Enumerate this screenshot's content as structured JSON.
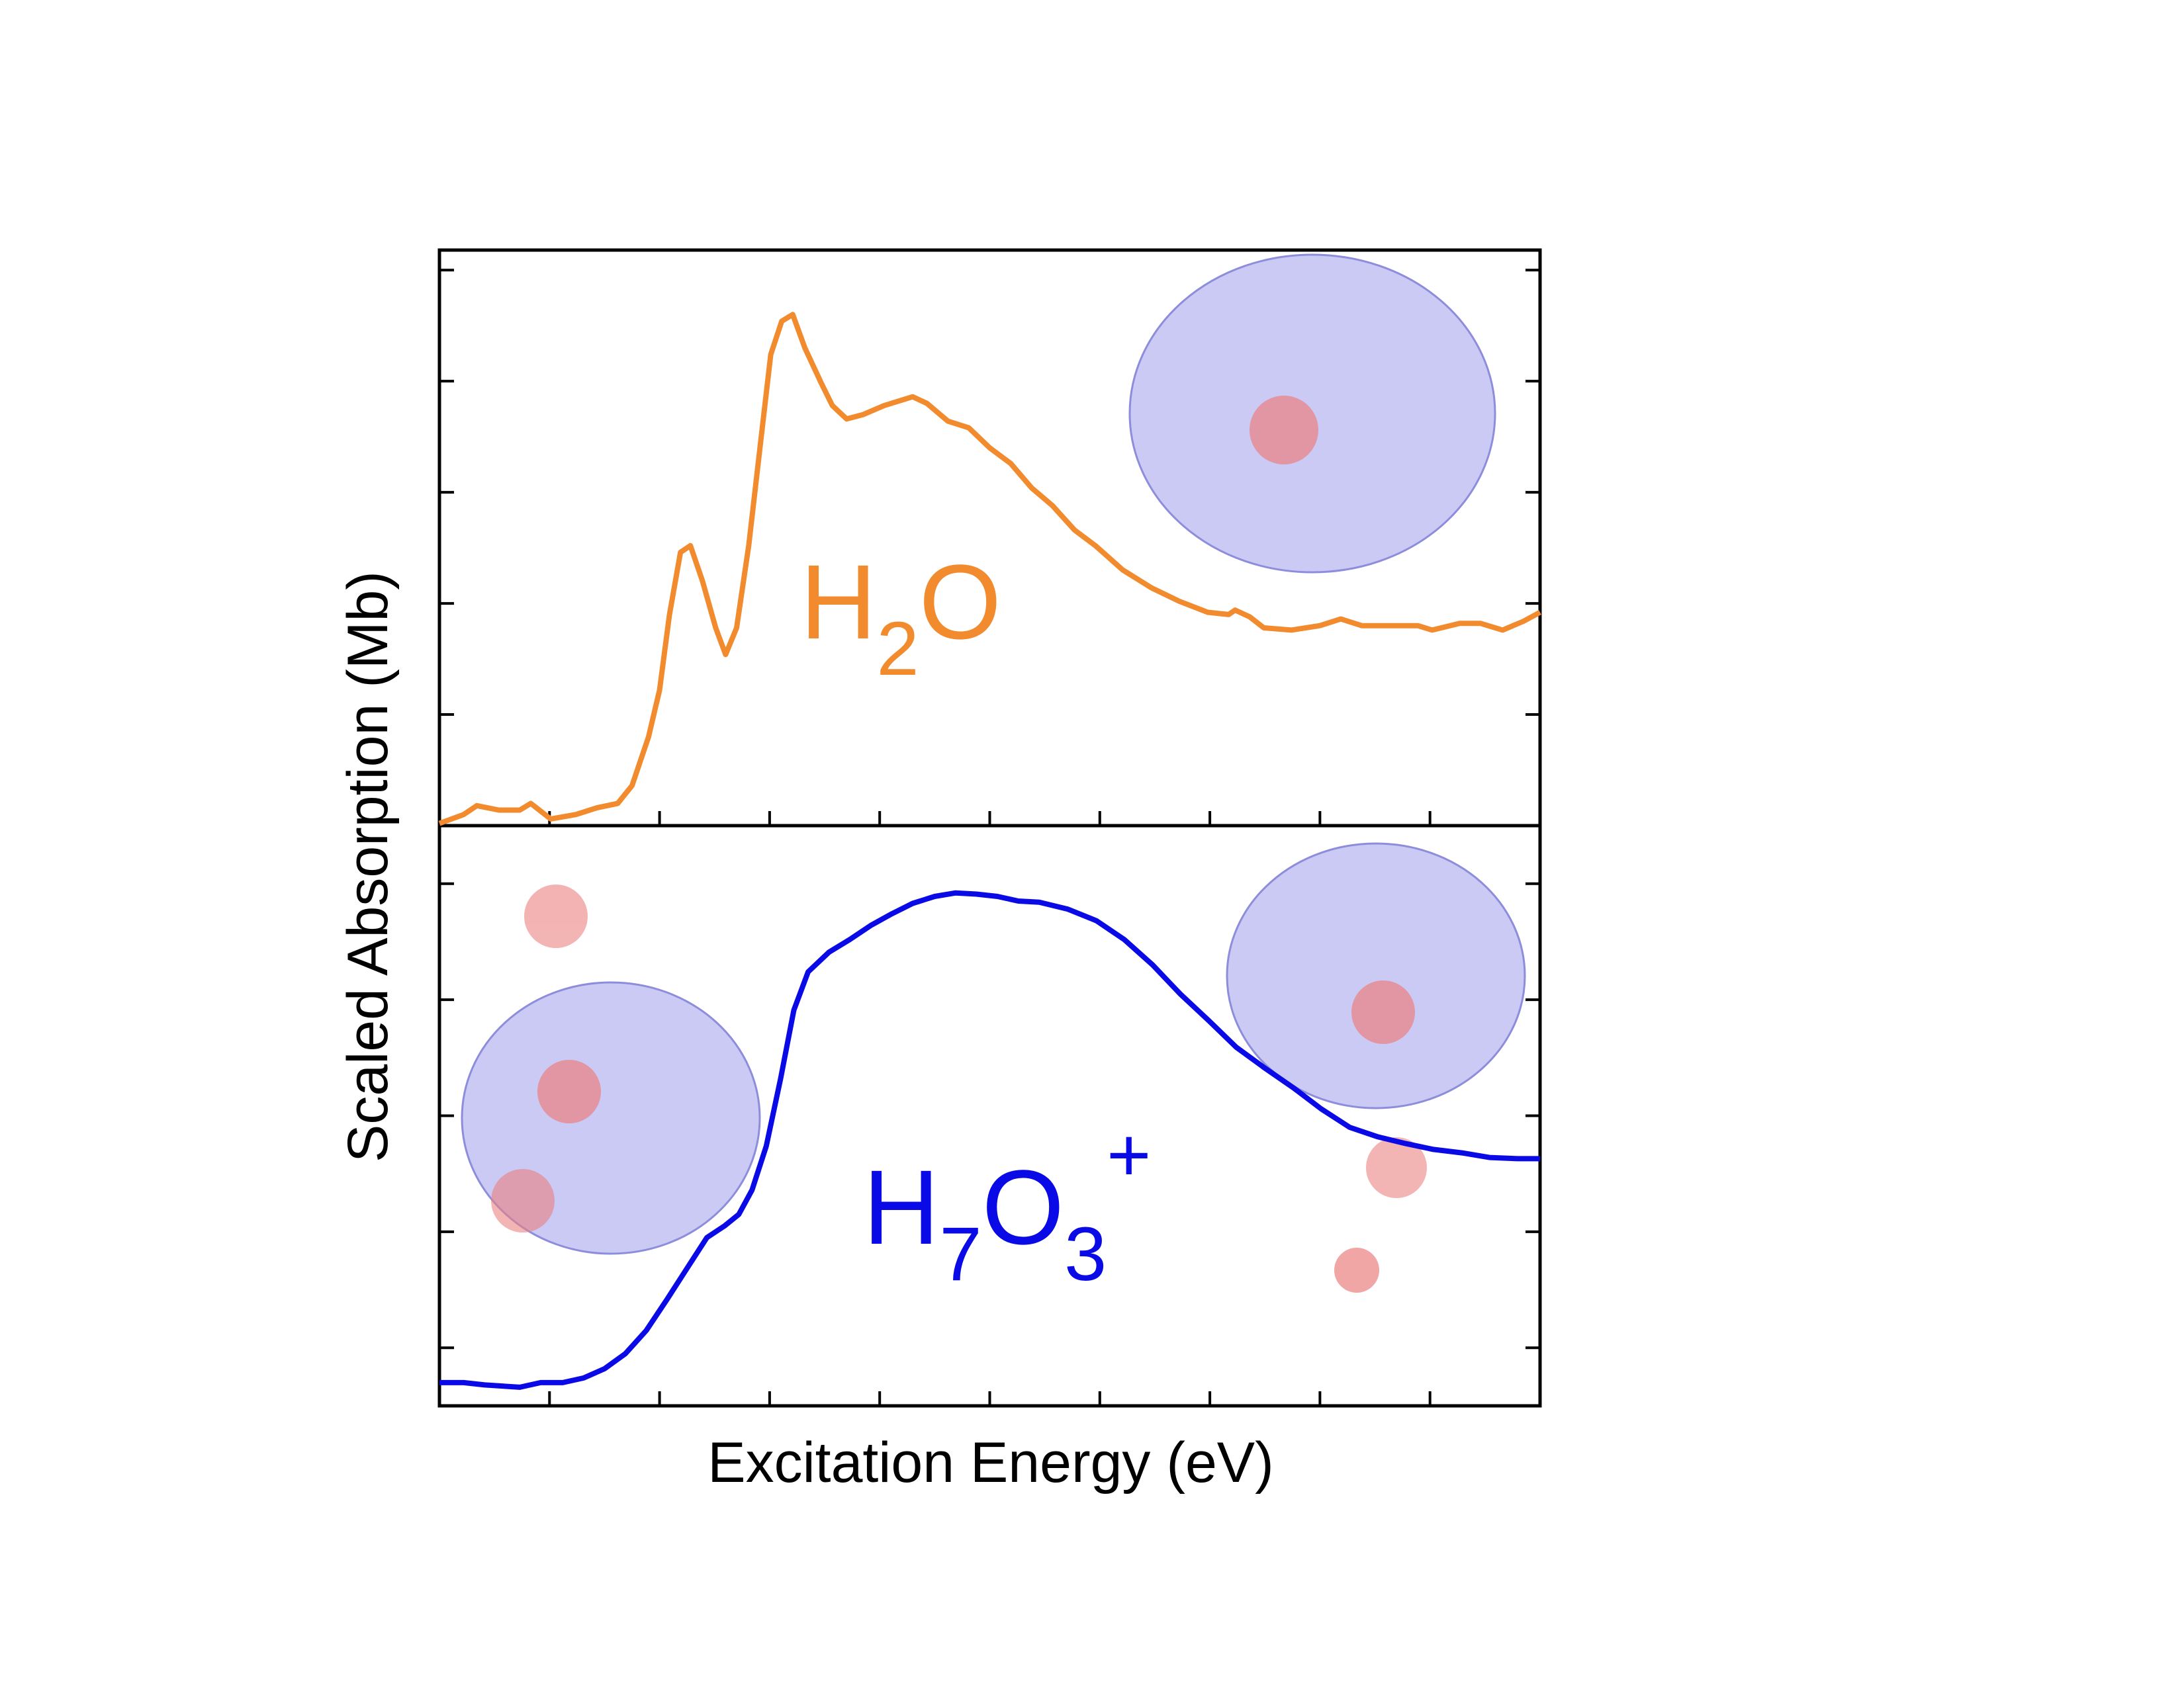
{
  "chart_data": [
    {
      "type": "line",
      "ylabel": "Scaled Absorption (Mb)",
      "annotation": [
        {
          "text": "H"
        },
        {
          "text": "2",
          "shift": "sub"
        },
        {
          "text": "O"
        }
      ],
      "xlim": [
        0,
        10
      ],
      "xticks": [
        1,
        2,
        3,
        4,
        5,
        6,
        7,
        8,
        9
      ],
      "ylim": [
        0,
        2.59
      ],
      "yticks": [
        0.5,
        1,
        1.5,
        2,
        2.5
      ],
      "x": [
        0,
        0.22,
        0.34,
        0.54,
        0.73,
        0.83,
        1.01,
        1.24,
        1.43,
        1.62,
        1.75,
        1.9,
        2,
        2.09,
        2.19,
        2.28,
        2.39,
        2.51,
        2.6,
        2.7,
        2.81,
        2.91,
        3.01,
        3.11,
        3.21,
        3.32,
        3.47,
        3.57,
        3.7,
        3.85,
        4.04,
        4.3,
        4.43,
        4.62,
        4.81,
        5,
        5.19,
        5.38,
        5.57,
        5.77,
        5.96,
        6.21,
        6.47,
        6.72,
        6.98,
        7.17,
        7.23,
        7.36,
        7.49,
        7.74,
        8,
        8.19,
        8.38,
        8.64,
        8.89,
        9.02,
        9.27,
        9.46,
        9.66,
        9.85,
        10
      ],
      "series": [
        {
          "color": "#f28a2e",
          "values": [
            0.01,
            0.05,
            0.09,
            0.07,
            0.07,
            0.1,
            0.03,
            0.05,
            0.08,
            0.1,
            0.18,
            0.4,
            0.61,
            0.95,
            1.23,
            1.26,
            1.1,
            0.89,
            0.77,
            0.89,
            1.26,
            1.69,
            2.12,
            2.27,
            2.3,
            2.15,
            1.99,
            1.89,
            1.83,
            1.85,
            1.89,
            1.93,
            1.9,
            1.82,
            1.79,
            1.7,
            1.63,
            1.52,
            1.44,
            1.33,
            1.26,
            1.15,
            1.07,
            1.01,
            0.96,
            0.95,
            0.97,
            0.94,
            0.89,
            0.88,
            0.9,
            0.93,
            0.9,
            0.9,
            0.9,
            0.88,
            0.91,
            0.91,
            0.88,
            0.92,
            0.96
          ]
        }
      ]
    },
    {
      "type": "line",
      "xlabel": "Excitation Energy (eV)",
      "annotation": [
        {
          "text": "H"
        },
        {
          "text": "7",
          "shift": "sub"
        },
        {
          "text": "O"
        },
        {
          "text": "3",
          "shift": "sub"
        },
        {
          "text": "+",
          "shift": "super"
        }
      ],
      "xlim": [
        0,
        10
      ],
      "xticks": [
        1,
        2,
        3,
        4,
        5,
        6,
        7,
        8,
        9
      ],
      "ylim": [
        0,
        5
      ],
      "yticks": [
        0.5,
        1.5,
        2.5,
        3.5,
        4.5
      ],
      "x": [
        0,
        0.22,
        0.41,
        0.73,
        0.92,
        1.12,
        1.31,
        1.5,
        1.69,
        1.88,
        2.07,
        2.26,
        2.43,
        2.59,
        2.72,
        2.84,
        2.97,
        3.1,
        3.22,
        3.35,
        3.54,
        3.73,
        3.92,
        4.11,
        4.3,
        4.5,
        4.69,
        4.88,
        5.07,
        5.26,
        5.45,
        5.71,
        5.97,
        6.22,
        6.48,
        6.73,
        6.99,
        7.24,
        7.5,
        7.76,
        8.01,
        8.27,
        8.52,
        8.78,
        9.03,
        9.29,
        9.54,
        9.8,
        10
      ],
      "series": [
        {
          "color": "#0a0ae6",
          "values": [
            0.2,
            0.2,
            0.18,
            0.16,
            0.2,
            0.2,
            0.24,
            0.32,
            0.45,
            0.65,
            0.92,
            1.2,
            1.45,
            1.55,
            1.65,
            1.86,
            2.24,
            2.82,
            3.41,
            3.74,
            3.91,
            4.02,
            4.14,
            4.24,
            4.33,
            4.39,
            4.42,
            4.41,
            4.39,
            4.35,
            4.34,
            4.28,
            4.18,
            4.02,
            3.8,
            3.55,
            3.32,
            3.09,
            2.91,
            2.74,
            2.56,
            2.4,
            2.32,
            2.26,
            2.21,
            2.18,
            2.14,
            2.13,
            2.13
          ]
        }
      ]
    }
  ]
}
